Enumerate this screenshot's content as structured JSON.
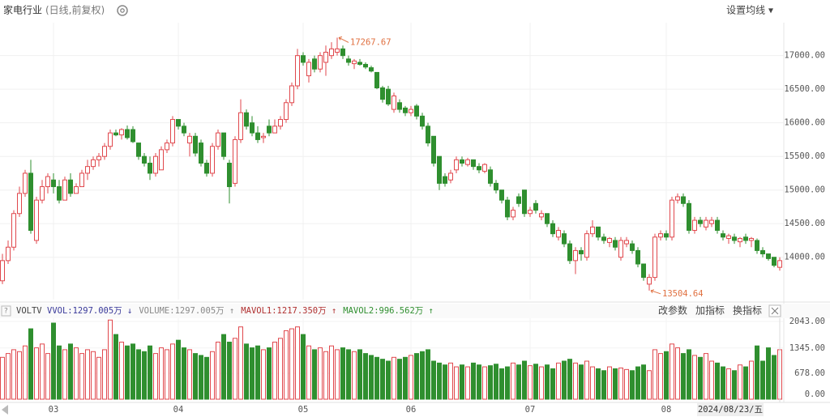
{
  "header": {
    "title": "家电行业",
    "subtitle": "(日线,前复权)",
    "ma_button": "设置均线 ▾"
  },
  "chart_data": [
    {
      "type": "candlestick",
      "annotations": [
        {
          "text": "17267.67",
          "index": 59
        },
        {
          "text": "13504.64",
          "index": 114
        }
      ],
      "categories": [
        null,
        null,
        null,
        null,
        null,
        null,
        null,
        null,
        null,
        "03",
        null,
        null,
        null,
        null,
        null,
        null,
        null,
        null,
        null,
        null,
        null,
        null,
        null,
        null,
        null,
        null,
        null,
        null,
        null,
        null,
        null,
        "04",
        null,
        null,
        null,
        null,
        null,
        null,
        null,
        null,
        null,
        null,
        null,
        null,
        null,
        null,
        null,
        null,
        null,
        null,
        null,
        null,
        null,
        "05",
        null,
        null,
        null,
        null,
        null,
        null,
        null,
        null,
        null,
        null,
        null,
        null,
        null,
        null,
        null,
        null,
        null,
        null,
        "06",
        null,
        null,
        null,
        null,
        null,
        null,
        null,
        null,
        null,
        null,
        null,
        null,
        null,
        null,
        null,
        null,
        null,
        null,
        null,
        null,
        "07",
        null,
        null,
        null,
        null,
        null,
        null,
        null,
        null,
        null,
        null,
        null,
        null,
        null,
        null,
        null,
        null,
        null,
        null,
        null,
        null,
        null,
        null,
        null,
        "08",
        null,
        null,
        null,
        null,
        null,
        null,
        null,
        null,
        null,
        null,
        null,
        null,
        null,
        null,
        null,
        null,
        null
      ],
      "ohlc": [
        [
          13650,
          14050,
          13600,
          13950
        ],
        [
          13950,
          14250,
          13900,
          14150
        ],
        [
          14150,
          14700,
          14100,
          14650
        ],
        [
          14650,
          15050,
          14600,
          14950
        ],
        [
          14950,
          15300,
          14900,
          15250
        ],
        [
          15250,
          15450,
          14350,
          14400
        ],
        [
          14250,
          14900,
          14200,
          14850
        ],
        [
          14850,
          15150,
          14800,
          15050
        ],
        [
          15050,
          15250,
          14950,
          15200
        ],
        [
          15150,
          15250,
          14950,
          15050
        ],
        [
          15050,
          15150,
          14800,
          14850
        ],
        [
          14850,
          15200,
          14850,
          15150
        ],
        [
          15150,
          15250,
          14900,
          14950
        ],
        [
          14950,
          15100,
          14950,
          15050
        ],
        [
          15050,
          15300,
          15050,
          15250
        ],
        [
          15250,
          15450,
          15150,
          15350
        ],
        [
          15350,
          15500,
          15300,
          15450
        ],
        [
          15450,
          15550,
          15350,
          15500
        ],
        [
          15500,
          15700,
          15450,
          15650
        ],
        [
          15650,
          15900,
          15600,
          15850
        ],
        [
          15850,
          15900,
          15800,
          15820
        ],
        [
          15820,
          15920,
          15750,
          15900
        ],
        [
          15900,
          15960,
          15750,
          15780
        ],
        [
          15900,
          15950,
          15700,
          15720
        ],
        [
          15700,
          15700,
          15450,
          15500
        ],
        [
          15500,
          15550,
          15350,
          15400
        ],
        [
          15400,
          15500,
          15150,
          15250
        ],
        [
          15250,
          15550,
          15200,
          15500
        ],
        [
          15300,
          15650,
          15300,
          15600
        ],
        [
          15600,
          15750,
          15550,
          15700
        ],
        [
          15700,
          16100,
          15650,
          16050
        ],
        [
          16050,
          16050,
          15900,
          15950
        ],
        [
          15950,
          16000,
          15800,
          15850
        ],
        [
          15700,
          15850,
          15500,
          15800
        ],
        [
          15800,
          15850,
          15500,
          15550
        ],
        [
          15700,
          15750,
          15350,
          15400
        ],
        [
          15400,
          15450,
          15200,
          15250
        ],
        [
          15250,
          15700,
          15200,
          15650
        ],
        [
          15650,
          15900,
          15600,
          15850
        ],
        [
          15850,
          15850,
          15450,
          15500
        ],
        [
          15400,
          15450,
          14800,
          15050
        ],
        [
          15100,
          15800,
          15050,
          15750
        ],
        [
          15750,
          16350,
          15700,
          16150
        ],
        [
          16150,
          16200,
          15900,
          15950
        ],
        [
          16000,
          16100,
          15800,
          15850
        ],
        [
          15850,
          15950,
          15700,
          15750
        ],
        [
          15780,
          15850,
          15700,
          15800
        ],
        [
          15950,
          16050,
          15800,
          15850
        ],
        [
          15850,
          16050,
          15850,
          15950
        ],
        [
          15950,
          16100,
          15900,
          16050
        ],
        [
          16050,
          16350,
          16000,
          16300
        ],
        [
          16300,
          16600,
          16250,
          16550
        ],
        [
          16550,
          17100,
          16500,
          17000
        ],
        [
          17000,
          17050,
          16850,
          16900
        ],
        [
          16700,
          16950,
          16600,
          16900
        ],
        [
          16950,
          17000,
          16750,
          16800
        ],
        [
          16800,
          17050,
          16750,
          17000
        ],
        [
          16900,
          17150,
          16700,
          17050
        ],
        [
          17000,
          17200,
          16950,
          17100
        ],
        [
          17050,
          17267.67,
          17000,
          17100
        ],
        [
          17100,
          17150,
          16950,
          17000
        ],
        [
          16950,
          17000,
          16850,
          16900
        ],
        [
          16880,
          16950,
          16800,
          16920
        ],
        [
          16900,
          16950,
          16850,
          16870
        ],
        [
          16870,
          16900,
          16800,
          16830
        ],
        [
          16820,
          16850,
          16750,
          16770
        ],
        [
          16750,
          16750,
          16500,
          16520
        ],
        [
          16520,
          16550,
          16300,
          16350
        ],
        [
          16500,
          16550,
          16250,
          16280
        ],
        [
          16200,
          16450,
          16150,
          16400
        ],
        [
          16300,
          16350,
          16150,
          16200
        ],
        [
          16220,
          16250,
          16100,
          16150
        ],
        [
          16150,
          16250,
          16100,
          16200
        ],
        [
          16250,
          16280,
          16050,
          16100
        ],
        [
          16100,
          16150,
          15900,
          15950
        ],
        [
          15950,
          16000,
          15650,
          15700
        ],
        [
          15800,
          15800,
          15350,
          15400
        ],
        [
          15500,
          15500,
          15000,
          15100
        ],
        [
          15200,
          15250,
          15050,
          15100
        ],
        [
          15150,
          15300,
          15100,
          15250
        ],
        [
          15300,
          15500,
          15250,
          15450
        ],
        [
          15450,
          15500,
          15350,
          15400
        ],
        [
          15380,
          15480,
          15350,
          15450
        ],
        [
          15450,
          15450,
          15300,
          15350
        ],
        [
          15350,
          15400,
          15250,
          15300
        ],
        [
          15280,
          15400,
          15250,
          15380
        ],
        [
          15300,
          15350,
          15050,
          15100
        ],
        [
          15100,
          15150,
          14950,
          15000
        ],
        [
          15000,
          15000,
          14800,
          14850
        ],
        [
          14850,
          14900,
          14550,
          14600
        ],
        [
          14600,
          14750,
          14550,
          14700
        ],
        [
          14900,
          14950,
          14750,
          14800
        ],
        [
          15000,
          15000,
          14600,
          14650
        ],
        [
          14650,
          14750,
          14600,
          14700
        ],
        [
          14800,
          14850,
          14650,
          14700
        ],
        [
          14600,
          14700,
          14550,
          14650
        ],
        [
          14650,
          14650,
          14450,
          14500
        ],
        [
          14500,
          14550,
          14300,
          14350
        ],
        [
          14300,
          14450,
          14250,
          14400
        ],
        [
          14350,
          14400,
          14150,
          14200
        ],
        [
          14200,
          14250,
          13900,
          13950
        ],
        [
          13950,
          14150,
          13750,
          14100
        ],
        [
          14100,
          14150,
          13950,
          14050
        ],
        [
          14000,
          14400,
          13950,
          14350
        ],
        [
          14350,
          14550,
          14300,
          14450
        ],
        [
          14450,
          14450,
          14250,
          14300
        ],
        [
          14300,
          14350,
          14200,
          14250
        ],
        [
          14220,
          14300,
          14150,
          14280
        ],
        [
          14250,
          14300,
          14100,
          14150
        ],
        [
          14000,
          14300,
          13950,
          14250
        ],
        [
          14200,
          14300,
          14150,
          14250
        ],
        [
          14200,
          14250,
          14050,
          14100
        ],
        [
          14100,
          14150,
          13850,
          13900
        ],
        [
          13900,
          13900,
          13650,
          13700
        ],
        [
          13600,
          13750,
          13504.64,
          13700
        ],
        [
          13700,
          14350,
          13650,
          14300
        ],
        [
          14300,
          14400,
          14250,
          14350
        ],
        [
          14350,
          14400,
          14250,
          14300
        ],
        [
          14300,
          14900,
          14250,
          14850
        ],
        [
          14850,
          14950,
          14800,
          14900
        ],
        [
          14900,
          14950,
          14750,
          14800
        ],
        [
          14800,
          14850,
          14350,
          14400
        ],
        [
          14400,
          14600,
          14350,
          14550
        ],
        [
          14550,
          14600,
          14450,
          14500
        ],
        [
          14450,
          14600,
          14400,
          14550
        ],
        [
          14500,
          14600,
          14450,
          14550
        ],
        [
          14550,
          14600,
          14350,
          14400
        ],
        [
          14350,
          14400,
          14250,
          14300
        ],
        [
          14280,
          14350,
          14200,
          14320
        ],
        [
          14300,
          14350,
          14200,
          14250
        ],
        [
          14230,
          14300,
          14150,
          14280
        ],
        [
          14300,
          14350,
          14200,
          14250
        ],
        [
          14250,
          14300,
          14150,
          14280
        ],
        [
          14250,
          14280,
          14050,
          14100
        ],
        [
          14100,
          14150,
          14000,
          14050
        ],
        [
          14050,
          14050,
          13950,
          13980
        ],
        [
          14000,
          14000,
          13850,
          13880
        ],
        [
          13850,
          14000,
          13800,
          13950
        ]
      ],
      "up_color": "#e0474c",
      "down_color": "#2f8f2f",
      "ylim": [
        13370,
        17490
      ],
      "yticks": [
        {
          "value": 14000,
          "label": "14000.00"
        },
        {
          "value": 14500,
          "label": "14500.00"
        },
        {
          "value": 15000,
          "label": "15000.00"
        },
        {
          "value": 15500,
          "label": "15500.00"
        },
        {
          "value": 16000,
          "label": "16000.00"
        },
        {
          "value": 16500,
          "label": "16500.00"
        },
        {
          "value": 17000,
          "label": "17000.00"
        }
      ],
      "grid": true
    },
    {
      "type": "volume",
      "indicator": "VOLTV",
      "legend": [
        {
          "text": "VVOL:1297.005万 ↓",
          "color": "#3a3a9a"
        },
        {
          "text": "VOLUME:1297.005万 ↑",
          "color": "#888888"
        },
        {
          "text": "MAVOL1:1217.350万 ↑",
          "color": "#b03030"
        },
        {
          "text": "MAVOL2:996.562万 ↑",
          "color": "#2f8f2f"
        }
      ],
      "buttons": [
        "改参数",
        "加指标",
        "换指标"
      ],
      "values": [
        1100,
        1200,
        1300,
        1250,
        1400,
        1850,
        1350,
        1450,
        1200,
        2000,
        1400,
        1300,
        1450,
        1350,
        1200,
        1300,
        1250,
        1100,
        1300,
        2080,
        1700,
        1500,
        1400,
        1450,
        1300,
        1250,
        1400,
        1200,
        1350,
        1300,
        1450,
        1550,
        1350,
        1300,
        1200,
        1150,
        1100,
        1250,
        1500,
        1700,
        1500,
        1600,
        1900,
        1450,
        1350,
        1400,
        1300,
        1350,
        1500,
        1600,
        1800,
        1850,
        1900,
        1700,
        1400,
        1300,
        1350,
        1250,
        1400,
        1300,
        1350,
        1300,
        1250,
        1300,
        1200,
        1150,
        1100,
        1050,
        1000,
        1100,
        1050,
        1100,
        1150,
        1200,
        1250,
        1300,
        1000,
        950,
        900,
        950,
        850,
        900,
        850,
        950,
        900,
        850,
        880,
        920,
        800,
        850,
        950,
        900,
        1000,
        880,
        920,
        850,
        900,
        800,
        950,
        1000,
        1050,
        950,
        900,
        1000,
        850,
        800,
        750,
        850,
        800,
        820,
        780,
        750,
        850,
        900,
        750,
        1300,
        1200,
        1250,
        1450,
        1350,
        1200,
        1300,
        1150,
        1100,
        1200,
        1000,
        950,
        850,
        800,
        750,
        900,
        850,
        1000,
        1400,
        1000,
        1350,
        1150,
        1300
      ],
      "ylim": [
        0,
        2043
      ],
      "yticks": [
        {
          "value": 0,
          "label": "0.00"
        },
        {
          "value": 678,
          "label": "678.00"
        },
        {
          "value": 1345,
          "label": "1345.00"
        },
        {
          "value": 2043,
          "label": "2043.00"
        }
      ],
      "cursor_label": "2024/08/23/五"
    }
  ]
}
